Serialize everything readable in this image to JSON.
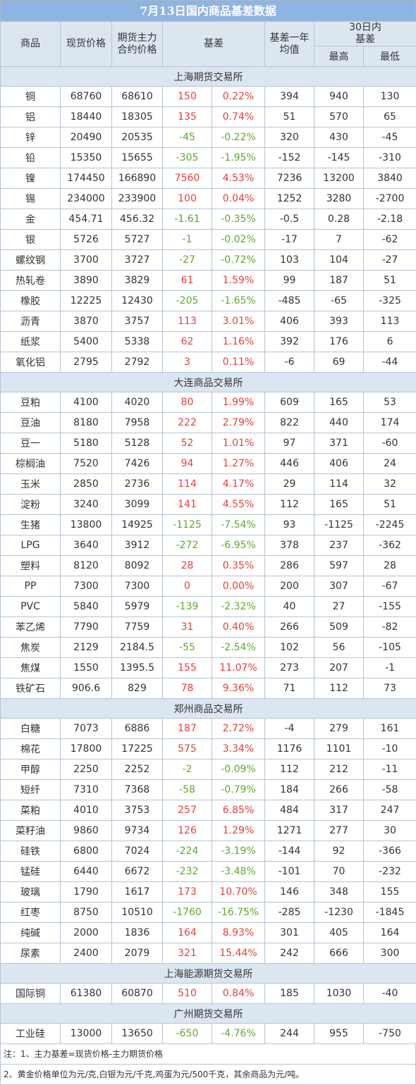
{
  "title": "7月13日国内商品基差数据",
  "table": {
    "header_row1": [
      "商品",
      "现货价格",
      "期货主力合约价格",
      "基差",
      "基差一年均值",
      "30日内基差"
    ],
    "header_row2": [
      "最高",
      "最低"
    ],
    "sections": [
      {
        "name": "上海期货交易所",
        "rows": [
          [
            "铜",
            "68760",
            "68610",
            "150",
            "0.22%",
            "394",
            "940",
            "130"
          ],
          [
            "铝",
            "18440",
            "18305",
            "135",
            "0.74%",
            "51",
            "570",
            "65"
          ],
          [
            "锌",
            "20490",
            "20535",
            "-45",
            "-0.22%",
            "320",
            "430",
            "-45"
          ],
          [
            "铅",
            "15350",
            "15655",
            "-305",
            "-1.95%",
            "-152",
            "-145",
            "-310"
          ],
          [
            "镍",
            "174450",
            "166890",
            "7560",
            "4.53%",
            "7236",
            "13200",
            "3840"
          ],
          [
            "锡",
            "234000",
            "233900",
            "100",
            "0.04%",
            "1252",
            "3280",
            "-2700"
          ],
          [
            "金",
            "454.71",
            "456.32",
            "-1.61",
            "-0.35%",
            "-0.5",
            "0.28",
            "-2.18"
          ],
          [
            "银",
            "5726",
            "5727",
            "-1",
            "-0.02%",
            "-17",
            "7",
            "-62"
          ],
          [
            "螺纹钢",
            "3700",
            "3727",
            "-27",
            "-0.72%",
            "103",
            "104",
            "-27"
          ],
          [
            "热轧卷",
            "3890",
            "3829",
            "61",
            "1.59%",
            "99",
            "187",
            "51"
          ],
          [
            "橡胶",
            "12225",
            "12430",
            "-205",
            "-1.65%",
            "-485",
            "-65",
            "-325"
          ],
          [
            "沥青",
            "3870",
            "3757",
            "113",
            "3.01%",
            "406",
            "393",
            "113"
          ],
          [
            "纸浆",
            "5400",
            "5338",
            "62",
            "1.16%",
            "392",
            "176",
            "6"
          ],
          [
            "氧化铝",
            "2795",
            "2792",
            "3",
            "0.11%",
            "-6",
            "69",
            "-44"
          ]
        ]
      },
      {
        "name": "大连商品交易所",
        "rows": [
          [
            "豆粕",
            "4100",
            "4020",
            "80",
            "1.99%",
            "609",
            "165",
            "53"
          ],
          [
            "豆油",
            "8180",
            "7958",
            "222",
            "2.79%",
            "822",
            "440",
            "174"
          ],
          [
            "豆一",
            "5180",
            "5128",
            "52",
            "1.01%",
            "97",
            "371",
            "-60"
          ],
          [
            "棕榈油",
            "7520",
            "7426",
            "94",
            "1.27%",
            "446",
            "406",
            "24"
          ],
          [
            "玉米",
            "2850",
            "2736",
            "114",
            "4.17%",
            "29",
            "114",
            "32"
          ],
          [
            "淀粉",
            "3240",
            "3099",
            "141",
            "4.55%",
            "112",
            "165",
            "51"
          ],
          [
            "生猪",
            "13800",
            "14925",
            "-1125",
            "-7.54%",
            "93",
            "-1125",
            "-2245"
          ],
          [
            "LPG",
            "3640",
            "3912",
            "-272",
            "-6.95%",
            "378",
            "237",
            "-362"
          ],
          [
            "塑料",
            "8120",
            "8092",
            "28",
            "0.35%",
            "286",
            "597",
            "28"
          ],
          [
            "PP",
            "7300",
            "7300",
            "0",
            "0.00%",
            "200",
            "307",
            "-67"
          ],
          [
            "PVC",
            "5840",
            "5979",
            "-139",
            "-2.32%",
            "40",
            "27",
            "-155"
          ],
          [
            "苯乙烯",
            "7790",
            "7759",
            "31",
            "0.40%",
            "266",
            "509",
            "-82"
          ],
          [
            "焦炭",
            "2129",
            "2184.5",
            "-55",
            "-2.54%",
            "102",
            "56",
            "-105"
          ],
          [
            "焦煤",
            "1550",
            "1395.5",
            "155",
            "11.07%",
            "273",
            "207",
            "-1"
          ],
          [
            "铁矿石",
            "906.6",
            "829",
            "78",
            "9.36%",
            "71",
            "112",
            "73"
          ]
        ]
      },
      {
        "name": "郑州商品交易所",
        "rows": [
          [
            "白糖",
            "7073",
            "6886",
            "187",
            "2.72%",
            "-4",
            "279",
            "161"
          ],
          [
            "棉花",
            "17800",
            "17225",
            "575",
            "3.34%",
            "1176",
            "1101",
            "-10"
          ],
          [
            "甲醇",
            "2250",
            "2252",
            "-2",
            "-0.09%",
            "112",
            "212",
            "-11"
          ],
          [
            "短纤",
            "7310",
            "7368",
            "-58",
            "-0.79%",
            "184",
            "266",
            "-58"
          ],
          [
            "菜粕",
            "4010",
            "3753",
            "257",
            "6.85%",
            "484",
            "317",
            "247"
          ],
          [
            "菜籽油",
            "9860",
            "9734",
            "126",
            "1.29%",
            "1271",
            "277",
            "30"
          ],
          [
            "硅铁",
            "6800",
            "7024",
            "-224",
            "-3.19%",
            "-144",
            "92",
            "-366"
          ],
          [
            "锰硅",
            "6440",
            "6672",
            "-232",
            "-3.48%",
            "-101",
            "70",
            "-232"
          ],
          [
            "玻璃",
            "1790",
            "1617",
            "173",
            "10.70%",
            "146",
            "348",
            "155"
          ],
          [
            "红枣",
            "8750",
            "10510",
            "-1760",
            "-16.75%",
            "-285",
            "-1230",
            "-1845"
          ],
          [
            "纯碱",
            "2000",
            "1836",
            "164",
            "8.93%",
            "301",
            "405",
            "164"
          ],
          [
            "尿素",
            "2400",
            "2079",
            "321",
            "15.44%",
            "242",
            "666",
            "300"
          ]
        ]
      },
      {
        "name": "上海能源期货交易所",
        "rows": [
          [
            "国际铜",
            "61380",
            "60870",
            "510",
            "0.84%",
            "185",
            "1030",
            "-40"
          ]
        ]
      },
      {
        "name": "广州期货交易所",
        "rows": [
          [
            "工业硅",
            "13000",
            "13650",
            "-650",
            "-4.76%",
            "244",
            "955",
            "-750"
          ]
        ]
      }
    ]
  },
  "notes": [
    "注：1、主力基差=现货价格-主力期货价格",
    "2、黄金价格单位为元/克,白银为元/千克,鸡蛋为元/500千克，其余商品为元/吨。"
  ]
}
